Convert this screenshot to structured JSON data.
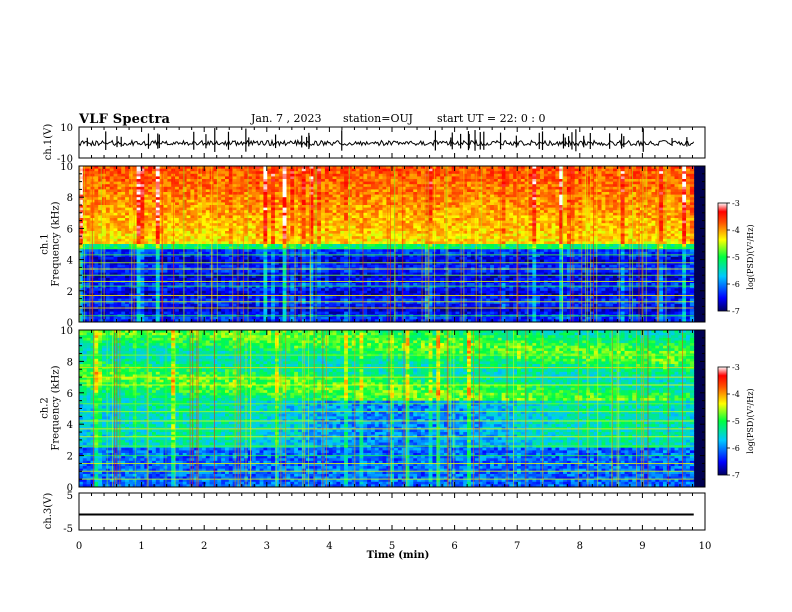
{
  "header": {
    "title": "VLF Spectra",
    "date": "Jan. 7 , 2023",
    "station": "station=OUJ",
    "start": "start UT = 22: 0 : 0"
  },
  "chart_data": [
    {
      "type": "line",
      "name": "ch1-waveform",
      "ylabel": "ch.1(V)",
      "ylim": [
        -10,
        10
      ],
      "ytick_labels": [
        "10",
        "-10"
      ],
      "xlim": [
        0,
        10
      ]
    },
    {
      "type": "heatmap",
      "name": "ch1-spectrogram",
      "ylabel": "ch.1\nFrequency (kHz)",
      "ylim": [
        0,
        10
      ],
      "yticks": [
        0,
        2,
        4,
        6,
        8,
        10
      ],
      "xlim": [
        0,
        10
      ],
      "data_extent_x": [
        0,
        9.82
      ],
      "colorbar": {
        "label": "log(PSD)(V²/Hz)",
        "range": [
          -7,
          -3
        ],
        "ticks": [
          "-3",
          "-4",
          "-5",
          "-6",
          "-7"
        ]
      }
    },
    {
      "type": "heatmap",
      "name": "ch2-spectrogram",
      "ylabel": "ch.2\nFrequency (kHz)",
      "ylim": [
        0,
        10
      ],
      "yticks": [
        0,
        2,
        4,
        6,
        8,
        10
      ],
      "xlim": [
        0,
        10
      ],
      "data_extent_x": [
        0,
        9.82
      ],
      "colorbar": {
        "label": "log(PSD)(V²/Hz)",
        "range": [
          -7,
          -3
        ],
        "ticks": [
          "-3",
          "-4",
          "-5",
          "-6",
          "-7"
        ]
      }
    },
    {
      "type": "line",
      "name": "ch3-waveform",
      "ylabel": "ch.3(V)",
      "ylim": [
        -5,
        5
      ],
      "ytick_labels": [
        "5",
        "-5"
      ],
      "x": [
        0,
        9.82
      ],
      "y": [
        -0.8,
        -0.8
      ],
      "xlabel": "Time (min)",
      "xlim": [
        0,
        10
      ],
      "xticks": [
        0,
        1,
        2,
        3,
        4,
        5,
        6,
        7,
        8,
        9,
        10
      ]
    }
  ]
}
